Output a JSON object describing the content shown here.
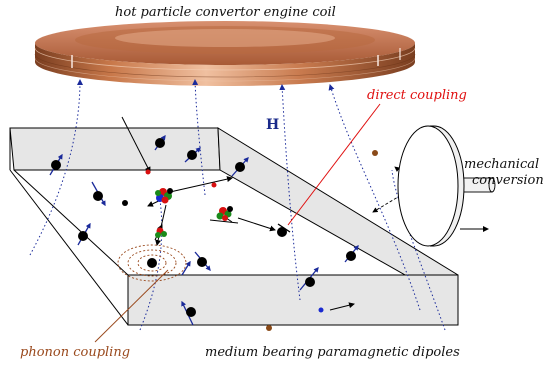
{
  "labels": {
    "coil": "hot particle convertor engine coil",
    "direct": "direct coupling",
    "field": "H",
    "mech1": "mechanical",
    "mech2": "conversion",
    "phonon": "phonon coupling",
    "medium": "medium bearing paramagnetic dipoles"
  },
  "colors": {
    "copper": "#c8784a",
    "copper_dark": "#8a4a28",
    "field_lines": "#1a2a9a",
    "dipole_arrow": "#1a2a9a",
    "particle": "#000000",
    "slab_face": "#e6e6e6",
    "direct_coupling": "#e01010",
    "phonon_coupling": "#9a4a1e",
    "cluster_red": "#d81010",
    "cluster_green": "#1a8a1a",
    "cluster_blue": "#1a2ad0"
  },
  "icons": {
    "coil": "copper-coil-icon",
    "disc": "rotor-disc-icon"
  }
}
